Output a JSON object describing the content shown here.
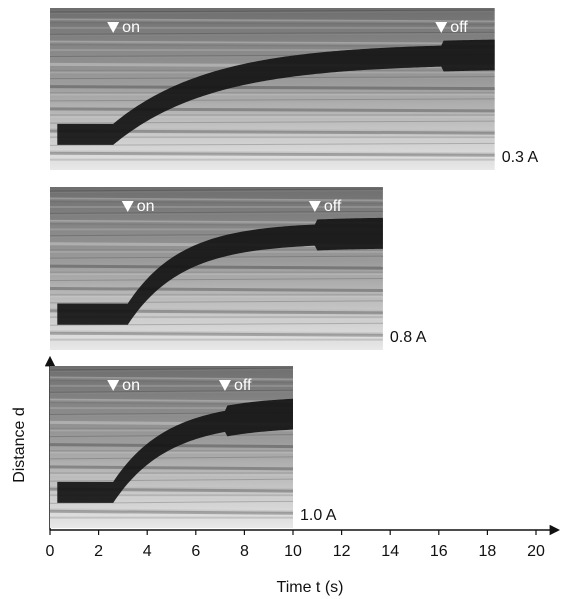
{
  "chart_data": {
    "type": "kymograph",
    "x_label": "Time t (s)",
    "y_label": "Distance d",
    "on_label": "on",
    "off_label": "off",
    "xlim": [
      0,
      21
    ],
    "xticks": [
      0,
      2,
      4,
      6,
      8,
      10,
      12,
      14,
      16,
      18,
      20
    ],
    "panels": [
      {
        "label": "0.3 A",
        "on": 2.6,
        "off": 16.1,
        "end": 18.3
      },
      {
        "label": "0.8 A",
        "on": 3.2,
        "off": 10.9,
        "end": 13.7
      },
      {
        "label": "1.0 A",
        "on": 2.6,
        "off": 7.2,
        "end": 10.0
      }
    ]
  }
}
